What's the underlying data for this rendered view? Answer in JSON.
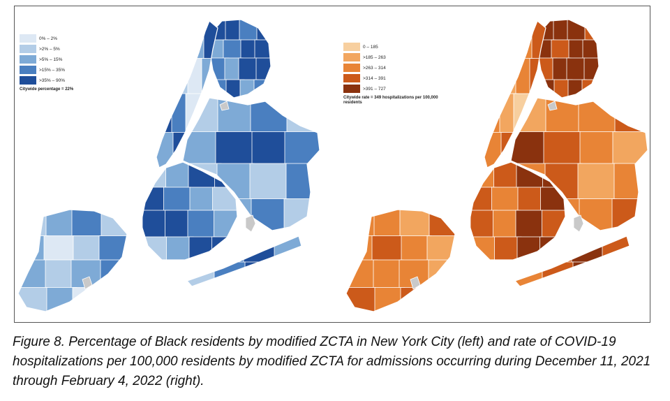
{
  "left_map": {
    "legend": [
      {
        "label": "0% – 2%",
        "color": "#dde8f4"
      },
      {
        "label": ">2% – 5%",
        "color": "#b3cde7"
      },
      {
        "label": ">5% – 15%",
        "color": "#7eaad6"
      },
      {
        "label": ">15% – 35%",
        "color": "#4a7fc0"
      },
      {
        "label": ">35% – 90%",
        "color": "#1f4e9a"
      }
    ],
    "note": "Citywide percentage = 22%"
  },
  "right_map": {
    "legend": [
      {
        "label": "0 – 185",
        "color": "#f7cf9f"
      },
      {
        "label": ">185 – 263",
        "color": "#f2a65f"
      },
      {
        "label": ">263 – 314",
        "color": "#e88436"
      },
      {
        "label": ">314 – 391",
        "color": "#cc5a1a"
      },
      {
        "label": ">391 – 727",
        "color": "#8a320e"
      }
    ],
    "note": "Citywide rate = 349 hospitalizations per 100,000 residents"
  },
  "caption": "Figure 8. Percentage of Black residents by modified ZCTA in New York City (left) and rate of COVID-19 hospitalizations per 100,000 residents by modified ZCTA for admissions occurring during December 11, 2021 through February 4, 2022 (right)."
}
